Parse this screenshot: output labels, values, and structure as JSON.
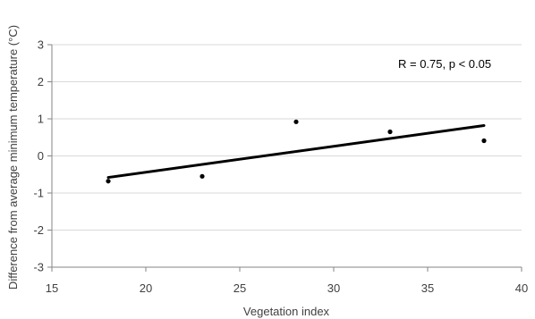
{
  "chart_data": {
    "type": "scatter",
    "title": "",
    "xlabel": "Vegetation index",
    "ylabel": "Difference from average minimum temperature (°C)",
    "xlim": [
      15,
      40
    ],
    "ylim": [
      -3,
      3
    ],
    "xticks": [
      15,
      20,
      25,
      30,
      35,
      40
    ],
    "yticks": [
      -3,
      -2,
      -1,
      0,
      1,
      2,
      3
    ],
    "grid": "horizontal",
    "points": [
      {
        "x": 18,
        "y": -0.68
      },
      {
        "x": 23,
        "y": -0.55
      },
      {
        "x": 28,
        "y": 0.92
      },
      {
        "x": 33,
        "y": 0.65
      },
      {
        "x": 38,
        "y": 0.41
      }
    ],
    "trendline": {
      "type": "linear",
      "x": [
        18,
        38
      ],
      "y": [
        -0.58,
        0.82
      ]
    },
    "annotation": "R = 0.75, p < 0.05",
    "colors": {
      "points": "#000000",
      "trendline": "#000000",
      "grid": "#d9d9d9",
      "axis": "#868686"
    }
  }
}
